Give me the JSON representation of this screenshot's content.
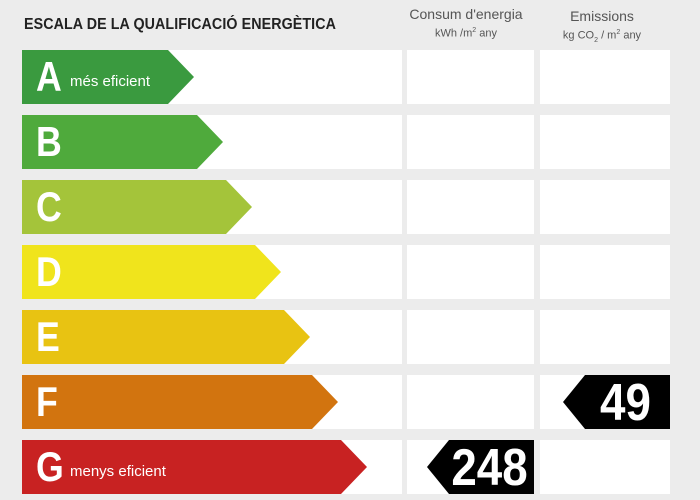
{
  "header": {
    "title": "ESCALA DE LA QUALIFICACIÓ ENERGÈTICA",
    "consum": {
      "label": "Consum d'energia",
      "unit_prefix": "kWh /m",
      "unit_exp": "2",
      "unit_suffix": " any"
    },
    "emissions": {
      "label": "Emissions",
      "unit_prefix": "kg CO",
      "unit_sub": "2",
      "unit_mid": " / m",
      "unit_exp": "2",
      "unit_suffix": " any"
    }
  },
  "ratings": [
    {
      "letter": "A",
      "desc": "més eficient",
      "color": "#3a9a3f"
    },
    {
      "letter": "B",
      "desc": "",
      "color": "#4faa3c"
    },
    {
      "letter": "C",
      "desc": "",
      "color": "#a4c43a"
    },
    {
      "letter": "D",
      "desc": "",
      "color": "#f0e41c"
    },
    {
      "letter": "E",
      "desc": "",
      "color": "#e8c312"
    },
    {
      "letter": "F",
      "desc": "",
      "color": "#d2740f"
    },
    {
      "letter": "G",
      "desc": "menys eficient",
      "color": "#c82222"
    }
  ],
  "consum_value": {
    "rating": "G",
    "value": "248"
  },
  "emissions_value": {
    "rating": "F",
    "value": "49"
  }
}
